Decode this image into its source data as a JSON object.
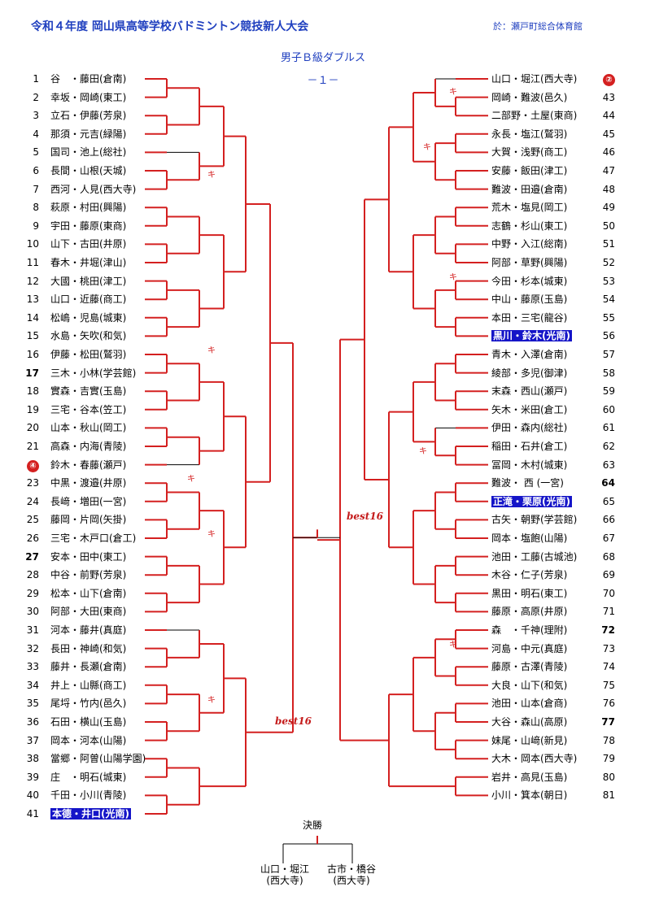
{
  "header": {
    "title": "令和４年度 岡山県高等学校バドミントン競技新人大会",
    "venue": "於：瀬戸町総合体育館",
    "event": "男子Ｂ級ダブルス",
    "page": "－１－"
  },
  "left_players": [
    {
      "num": "1",
      "name": "谷　・藤田(倉南)"
    },
    {
      "num": "2",
      "name": "幸坂・岡崎(東工)"
    },
    {
      "num": "3",
      "name": "立石・伊藤(芳泉)"
    },
    {
      "num": "4",
      "name": "那須・元吉(緑陽)"
    },
    {
      "num": "5",
      "name": "国司・池上(総社)"
    },
    {
      "num": "6",
      "name": "長間・山根(天城)"
    },
    {
      "num": "7",
      "name": "西河・人見(西大寺)"
    },
    {
      "num": "8",
      "name": "萩原・村田(興陽)"
    },
    {
      "num": "9",
      "name": "宇田・藤原(東商)"
    },
    {
      "num": "10",
      "name": "山下・古田(井原)"
    },
    {
      "num": "11",
      "name": "春木・井堀(津山)"
    },
    {
      "num": "12",
      "name": "大國・桃田(津工)"
    },
    {
      "num": "13",
      "name": "山口・近藤(商工)"
    },
    {
      "num": "14",
      "name": "松嶋・児島(城東)"
    },
    {
      "num": "15",
      "name": "水島・矢吹(和気)"
    },
    {
      "num": "16",
      "name": "伊藤・松田(鷲羽)"
    },
    {
      "num": "17",
      "name": "三木・小林(学芸館)"
    },
    {
      "num": "18",
      "name": "實森・吉實(玉島)"
    },
    {
      "num": "19",
      "name": "三宅・谷本(笠工)"
    },
    {
      "num": "20",
      "name": "山本・秋山(岡工)"
    },
    {
      "num": "21",
      "name": "高森・内海(青陵)"
    },
    {
      "num": "22",
      "name": "鈴木・春藤(瀬戸)"
    },
    {
      "num": "23",
      "name": "中黒・渡邉(井原)"
    },
    {
      "num": "24",
      "name": "長﨑・増田(一宮)"
    },
    {
      "num": "25",
      "name": "藤岡・片岡(矢掛)"
    },
    {
      "num": "26",
      "name": "三宅・木戸口(倉工)"
    },
    {
      "num": "27",
      "name": "安本・田中(東工)"
    },
    {
      "num": "28",
      "name": "中谷・前野(芳泉)"
    },
    {
      "num": "29",
      "name": "松本・山下(倉南)"
    },
    {
      "num": "30",
      "name": "阿部・大田(東商)"
    },
    {
      "num": "31",
      "name": "河本・藤井(真庭)"
    },
    {
      "num": "32",
      "name": "長田・神崎(和気)"
    },
    {
      "num": "33",
      "name": "藤井・長瀬(倉南)"
    },
    {
      "num": "34",
      "name": "井上・山縣(商工)"
    },
    {
      "num": "35",
      "name": "尾埒・竹内(邑久)"
    },
    {
      "num": "36",
      "name": "石田・横山(玉島)"
    },
    {
      "num": "37",
      "name": "岡本・河本(山陽)"
    },
    {
      "num": "38",
      "name": "當郷・阿曽(山陽学園)"
    },
    {
      "num": "39",
      "name": "庄　・明石(城東)"
    },
    {
      "num": "40",
      "name": "千田・小川(青陵)"
    },
    {
      "num": "41",
      "name": "本德・井口(光南)"
    }
  ],
  "right_players": [
    {
      "num": "42",
      "name": "山口・堀江(西大寺)"
    },
    {
      "num": "43",
      "name": "岡崎・難波(邑久)"
    },
    {
      "num": "44",
      "name": "二部野・土屋(東商)"
    },
    {
      "num": "45",
      "name": "永長・塩江(鷲羽)"
    },
    {
      "num": "46",
      "name": "大賀・浅野(商工)"
    },
    {
      "num": "47",
      "name": "安藤・飯田(津工)"
    },
    {
      "num": "48",
      "name": "難波・田邉(倉南)"
    },
    {
      "num": "49",
      "name": "荒木・塩見(岡工)"
    },
    {
      "num": "50",
      "name": "志鶴・杉山(東工)"
    },
    {
      "num": "51",
      "name": "中野・入江(総南)"
    },
    {
      "num": "52",
      "name": "阿部・草野(興陽)"
    },
    {
      "num": "53",
      "name": "今田・杉本(城東)"
    },
    {
      "num": "54",
      "name": "中山・藤原(玉島)"
    },
    {
      "num": "55",
      "name": "本田・三宅(龍谷)"
    },
    {
      "num": "56",
      "name": "黒川・鈴木(光南)"
    },
    {
      "num": "57",
      "name": "青木・入澤(倉南)"
    },
    {
      "num": "58",
      "name": "綾部・多児(御津)"
    },
    {
      "num": "59",
      "name": "末森・西山(瀬戸)"
    },
    {
      "num": "60",
      "name": "矢木・米田(倉工)"
    },
    {
      "num": "61",
      "name": "伊田・森内(総社)"
    },
    {
      "num": "62",
      "name": "稲田・石井(倉工)"
    },
    {
      "num": "63",
      "name": "冨岡・木村(城東)"
    },
    {
      "num": "64",
      "name": "難波・ 西 (一宮)"
    },
    {
      "num": "65",
      "name": "正滝・栗原(光南)"
    },
    {
      "num": "66",
      "name": "古矢・朝野(学芸館)"
    },
    {
      "num": "67",
      "name": "岡本・塩飽(山陽)"
    },
    {
      "num": "68",
      "name": "池田・工藤(古城池)"
    },
    {
      "num": "69",
      "name": "木谷・仁子(芳泉)"
    },
    {
      "num": "70",
      "name": "黒田・明石(東工)"
    },
    {
      "num": "71",
      "name": "藤原・高原(井原)"
    },
    {
      "num": "72",
      "name": "森　・千神(理附)"
    },
    {
      "num": "73",
      "name": "河島・中元(真庭)"
    },
    {
      "num": "74",
      "name": "藤原・古澤(青陵)"
    },
    {
      "num": "75",
      "name": "大良・山下(和気)"
    },
    {
      "num": "76",
      "name": "池田・山本(倉商)"
    },
    {
      "num": "77",
      "name": "大谷・森山(高原)"
    },
    {
      "num": "78",
      "name": "妹尾・山﨑(新見)"
    },
    {
      "num": "79",
      "name": "大木・岡本(西大寺)"
    },
    {
      "num": "80",
      "name": "岩井・高見(玉島)"
    },
    {
      "num": "81",
      "name": "小川・箕本(朝日)"
    }
  ],
  "seeds": {
    "left": "④",
    "right": "②"
  },
  "labels": {
    "best16": "best16",
    "kiken": "キ"
  },
  "final": {
    "heading": "決勝",
    "left_names": "山口・堀江",
    "left_school": "(西大寺)",
    "right_names": "古市・橋谷",
    "right_school": "(西大寺)"
  },
  "colors": {
    "bracket_win": "#d42020",
    "bracket_plain": "#000000",
    "highlight": "#1515c8",
    "title": "#1f3fbf"
  }
}
